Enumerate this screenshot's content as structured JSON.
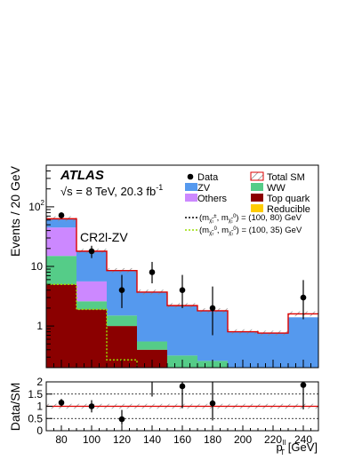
{
  "chart_data": [
    {
      "type": "bar",
      "stacked": true,
      "log_scale_y": true,
      "x_edges": [
        70,
        90,
        110,
        130,
        150,
        170,
        190,
        210,
        230,
        250
      ],
      "xlim": [
        70,
        250
      ],
      "ylim": [
        0.2,
        500
      ],
      "ylabel": "Events / 20 GeV",
      "y_ticks": [
        {
          "v": 1,
          "label": "1"
        },
        {
          "v": 10,
          "label": "10"
        },
        {
          "v": 100,
          "label": "10",
          "sup": "2"
        }
      ],
      "experiment": "ATLAS",
      "energy_label": "√s = 8 TeV, 20.3 fb",
      "energy_sup": "-1",
      "region": "CR2l-ZV",
      "stack": [
        {
          "name": "Top quark",
          "color": "#8b0000",
          "values": [
            5,
            1.9,
            1.0,
            0.4,
            0.2,
            0.2,
            0.2,
            0.2,
            0.2
          ]
        },
        {
          "name": "WW",
          "color": "#55cc88",
          "values": [
            10,
            0.7,
            0.5,
            0.15,
            0.12,
            0.06,
            0.0,
            0.0,
            0.0
          ]
        },
        {
          "name": "Others",
          "color": "#cc88ff",
          "values": [
            30,
            3.0,
            0.0,
            0.0,
            0.0,
            0.0,
            0.0,
            0.0,
            0.0
          ]
        },
        {
          "name": "ZV",
          "color": "#5599ee",
          "values": [
            18,
            12.4,
            7.0,
            3.15,
            1.88,
            1.54,
            0.6,
            0.56,
            1.2
          ]
        },
        {
          "name": "Reducible",
          "color": "#ffcc00",
          "values": [
            0,
            0,
            0,
            0,
            0,
            0,
            0,
            0,
            0
          ]
        }
      ],
      "total_sm": {
        "name": "Total SM",
        "color": "#dd0000",
        "values": [
          63,
          18,
          8.5,
          3.7,
          2.2,
          1.8,
          0.8,
          0.76,
          1.6
        ]
      },
      "data": {
        "name": "Data",
        "x": [
          80,
          100,
          120,
          140,
          160,
          180,
          240
        ],
        "y": [
          72,
          18,
          4,
          8,
          4,
          2,
          3
        ],
        "err_lo": [
          8.5,
          4.2,
          2.0,
          2.8,
          2.0,
          1.3,
          1.7
        ],
        "err_hi": [
          8.5,
          4.2,
          3.2,
          3.9,
          3.2,
          2.6,
          2.9
        ]
      },
      "signals": [
        {
          "name": "(mχ̃±₁, mχ̃⁰₁) = (100, 80) GeV",
          "color": "#000000",
          "values": [
            0,
            0,
            0,
            0,
            0,
            0,
            0,
            0,
            0
          ]
        },
        {
          "name": "(mχ̃⁰₂, mχ̃⁰₁) = (100, 35) GeV",
          "color": "#99dd00",
          "values": [
            5,
            1.9,
            0.27,
            0,
            0,
            0,
            0,
            0,
            0
          ]
        }
      ],
      "legend_title": {
        "sig1_prefix": "(m",
        "sig1_a": "±",
        "sig1_sa": "χ̃₁",
        "sig1_mid": ", m",
        "sig1_b": "0",
        "sig1_sb": "χ̃₁",
        "sig1_suffix": ") = (100, 80) GeV",
        "sig2_prefix": "(m",
        "sig2_a": "0",
        "sig2_sa": "χ̃₂",
        "sig2_mid": ", m",
        "sig2_b": "0",
        "sig2_sb": "χ̃₁",
        "sig2_suffix": ") = (100, 35) GeV"
      }
    },
    {
      "type": "scatter",
      "ylabel": "Data/SM",
      "ylim": [
        0,
        2
      ],
      "y_ticks": [
        "0",
        "0.5",
        "1",
        "1.5",
        "2"
      ],
      "xlabel_base": "p",
      "xlabel_sup": "ll",
      "xlabel_sub": "T",
      "xlabel_unit": " [GeV]",
      "x_ticks": [
        "80",
        "100",
        "120",
        "140",
        "160",
        "180",
        "200",
        "220",
        "240"
      ],
      "ratio": {
        "x": [
          80,
          100,
          120,
          140,
          160,
          180,
          240
        ],
        "y": [
          1.15,
          1.0,
          0.47,
          2.1,
          1.82,
          1.12,
          1.87
        ],
        "err_lo": [
          0.15,
          0.25,
          0.24,
          0.7,
          0.9,
          0.7,
          1.0
        ],
        "err_hi": [
          0.15,
          0.25,
          0.38,
          1.0,
          1.4,
          1.4,
          1.8
        ]
      }
    }
  ]
}
